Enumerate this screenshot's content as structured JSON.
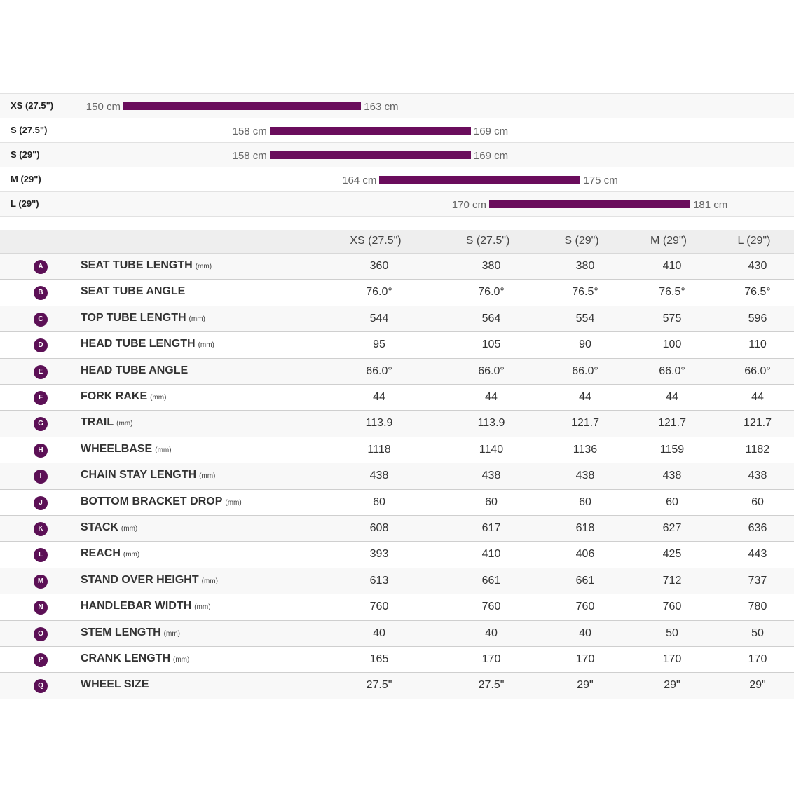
{
  "size_ranges": [
    {
      "size": "XS (27.5\")",
      "min": {
        "value": 150,
        "label": "150 cm"
      },
      "max": {
        "value": 163,
        "label": "163 cm"
      }
    },
    {
      "size": "S (27.5\")",
      "min": {
        "value": 158,
        "label": "158 cm"
      },
      "max": {
        "value": 169,
        "label": "169 cm"
      }
    },
    {
      "size": "S (29\")",
      "min": {
        "value": 158,
        "label": "158 cm"
      },
      "max": {
        "value": 169,
        "label": "169 cm"
      }
    },
    {
      "size": "M (29\")",
      "min": {
        "value": 164,
        "label": "164 cm"
      },
      "max": {
        "value": 175,
        "label": "175 cm"
      }
    },
    {
      "size": "L (29\")",
      "min": {
        "value": 170,
        "label": "170 cm"
      },
      "max": {
        "value": 181,
        "label": "181 cm"
      }
    }
  ],
  "table": {
    "columns": [
      "XS (27.5\")",
      "S (27.5\")",
      "S (29\")",
      "M (29\")",
      "L (29\")"
    ],
    "rows": [
      {
        "letter": "A",
        "name": "SEAT TUBE LENGTH",
        "unit": "(mm)",
        "values": [
          "360",
          "380",
          "380",
          "410",
          "430"
        ]
      },
      {
        "letter": "B",
        "name": "SEAT TUBE ANGLE",
        "values": [
          "76.0°",
          "76.0°",
          "76.5°",
          "76.5°",
          "76.5°"
        ]
      },
      {
        "letter": "C",
        "name": "TOP TUBE LENGTH",
        "unit": "(mm)",
        "values": [
          "544",
          "564",
          "554",
          "575",
          "596"
        ]
      },
      {
        "letter": "D",
        "name": "HEAD TUBE LENGTH",
        "unit": "(mm)",
        "values": [
          "95",
          "105",
          "90",
          "100",
          "110"
        ]
      },
      {
        "letter": "E",
        "name": "HEAD TUBE ANGLE",
        "values": [
          "66.0°",
          "66.0°",
          "66.0°",
          "66.0°",
          "66.0°"
        ]
      },
      {
        "letter": "F",
        "name": "FORK RAKE",
        "unit": "(mm)",
        "values": [
          "44",
          "44",
          "44",
          "44",
          "44"
        ]
      },
      {
        "letter": "G",
        "name": "TRAIL",
        "unit": "(mm)",
        "values": [
          "113.9",
          "113.9",
          "121.7",
          "121.7",
          "121.7"
        ]
      },
      {
        "letter": "H",
        "name": "WHEELBASE",
        "unit": "(mm)",
        "values": [
          "1118",
          "1140",
          "1136",
          "1159",
          "1182"
        ]
      },
      {
        "letter": "I",
        "name": "CHAIN STAY LENGTH",
        "unit": "(mm)",
        "values": [
          "438",
          "438",
          "438",
          "438",
          "438"
        ]
      },
      {
        "letter": "J",
        "name": "BOTTOM BRACKET DROP",
        "unit": "(mm)",
        "values": [
          "60",
          "60",
          "60",
          "60",
          "60"
        ]
      },
      {
        "letter": "K",
        "name": "STACK",
        "unit": "(mm)",
        "values": [
          "608",
          "617",
          "618",
          "627",
          "636"
        ]
      },
      {
        "letter": "L",
        "name": "REACH",
        "unit": "(mm)",
        "values": [
          "393",
          "410",
          "406",
          "425",
          "443"
        ]
      },
      {
        "letter": "M",
        "name": "STAND OVER HEIGHT",
        "unit": "(mm)",
        "values": [
          "613",
          "661",
          "661",
          "712",
          "737"
        ]
      },
      {
        "letter": "N",
        "name": "HANDLEBAR WIDTH",
        "unit": "(mm)",
        "values": [
          "760",
          "760",
          "760",
          "760",
          "780"
        ]
      },
      {
        "letter": "O",
        "name": "STEM LENGTH",
        "unit": "(mm)",
        "values": [
          "40",
          "40",
          "40",
          "50",
          "50"
        ]
      },
      {
        "letter": "P",
        "name": "CRANK LENGTH",
        "unit": "(mm)",
        "values": [
          "165",
          "170",
          "170",
          "170",
          "170"
        ]
      },
      {
        "letter": "Q",
        "name": "WHEEL SIZE",
        "values": [
          "27.5\"",
          "27.5\"",
          "29\"",
          "29\"",
          "29\""
        ]
      }
    ]
  }
}
